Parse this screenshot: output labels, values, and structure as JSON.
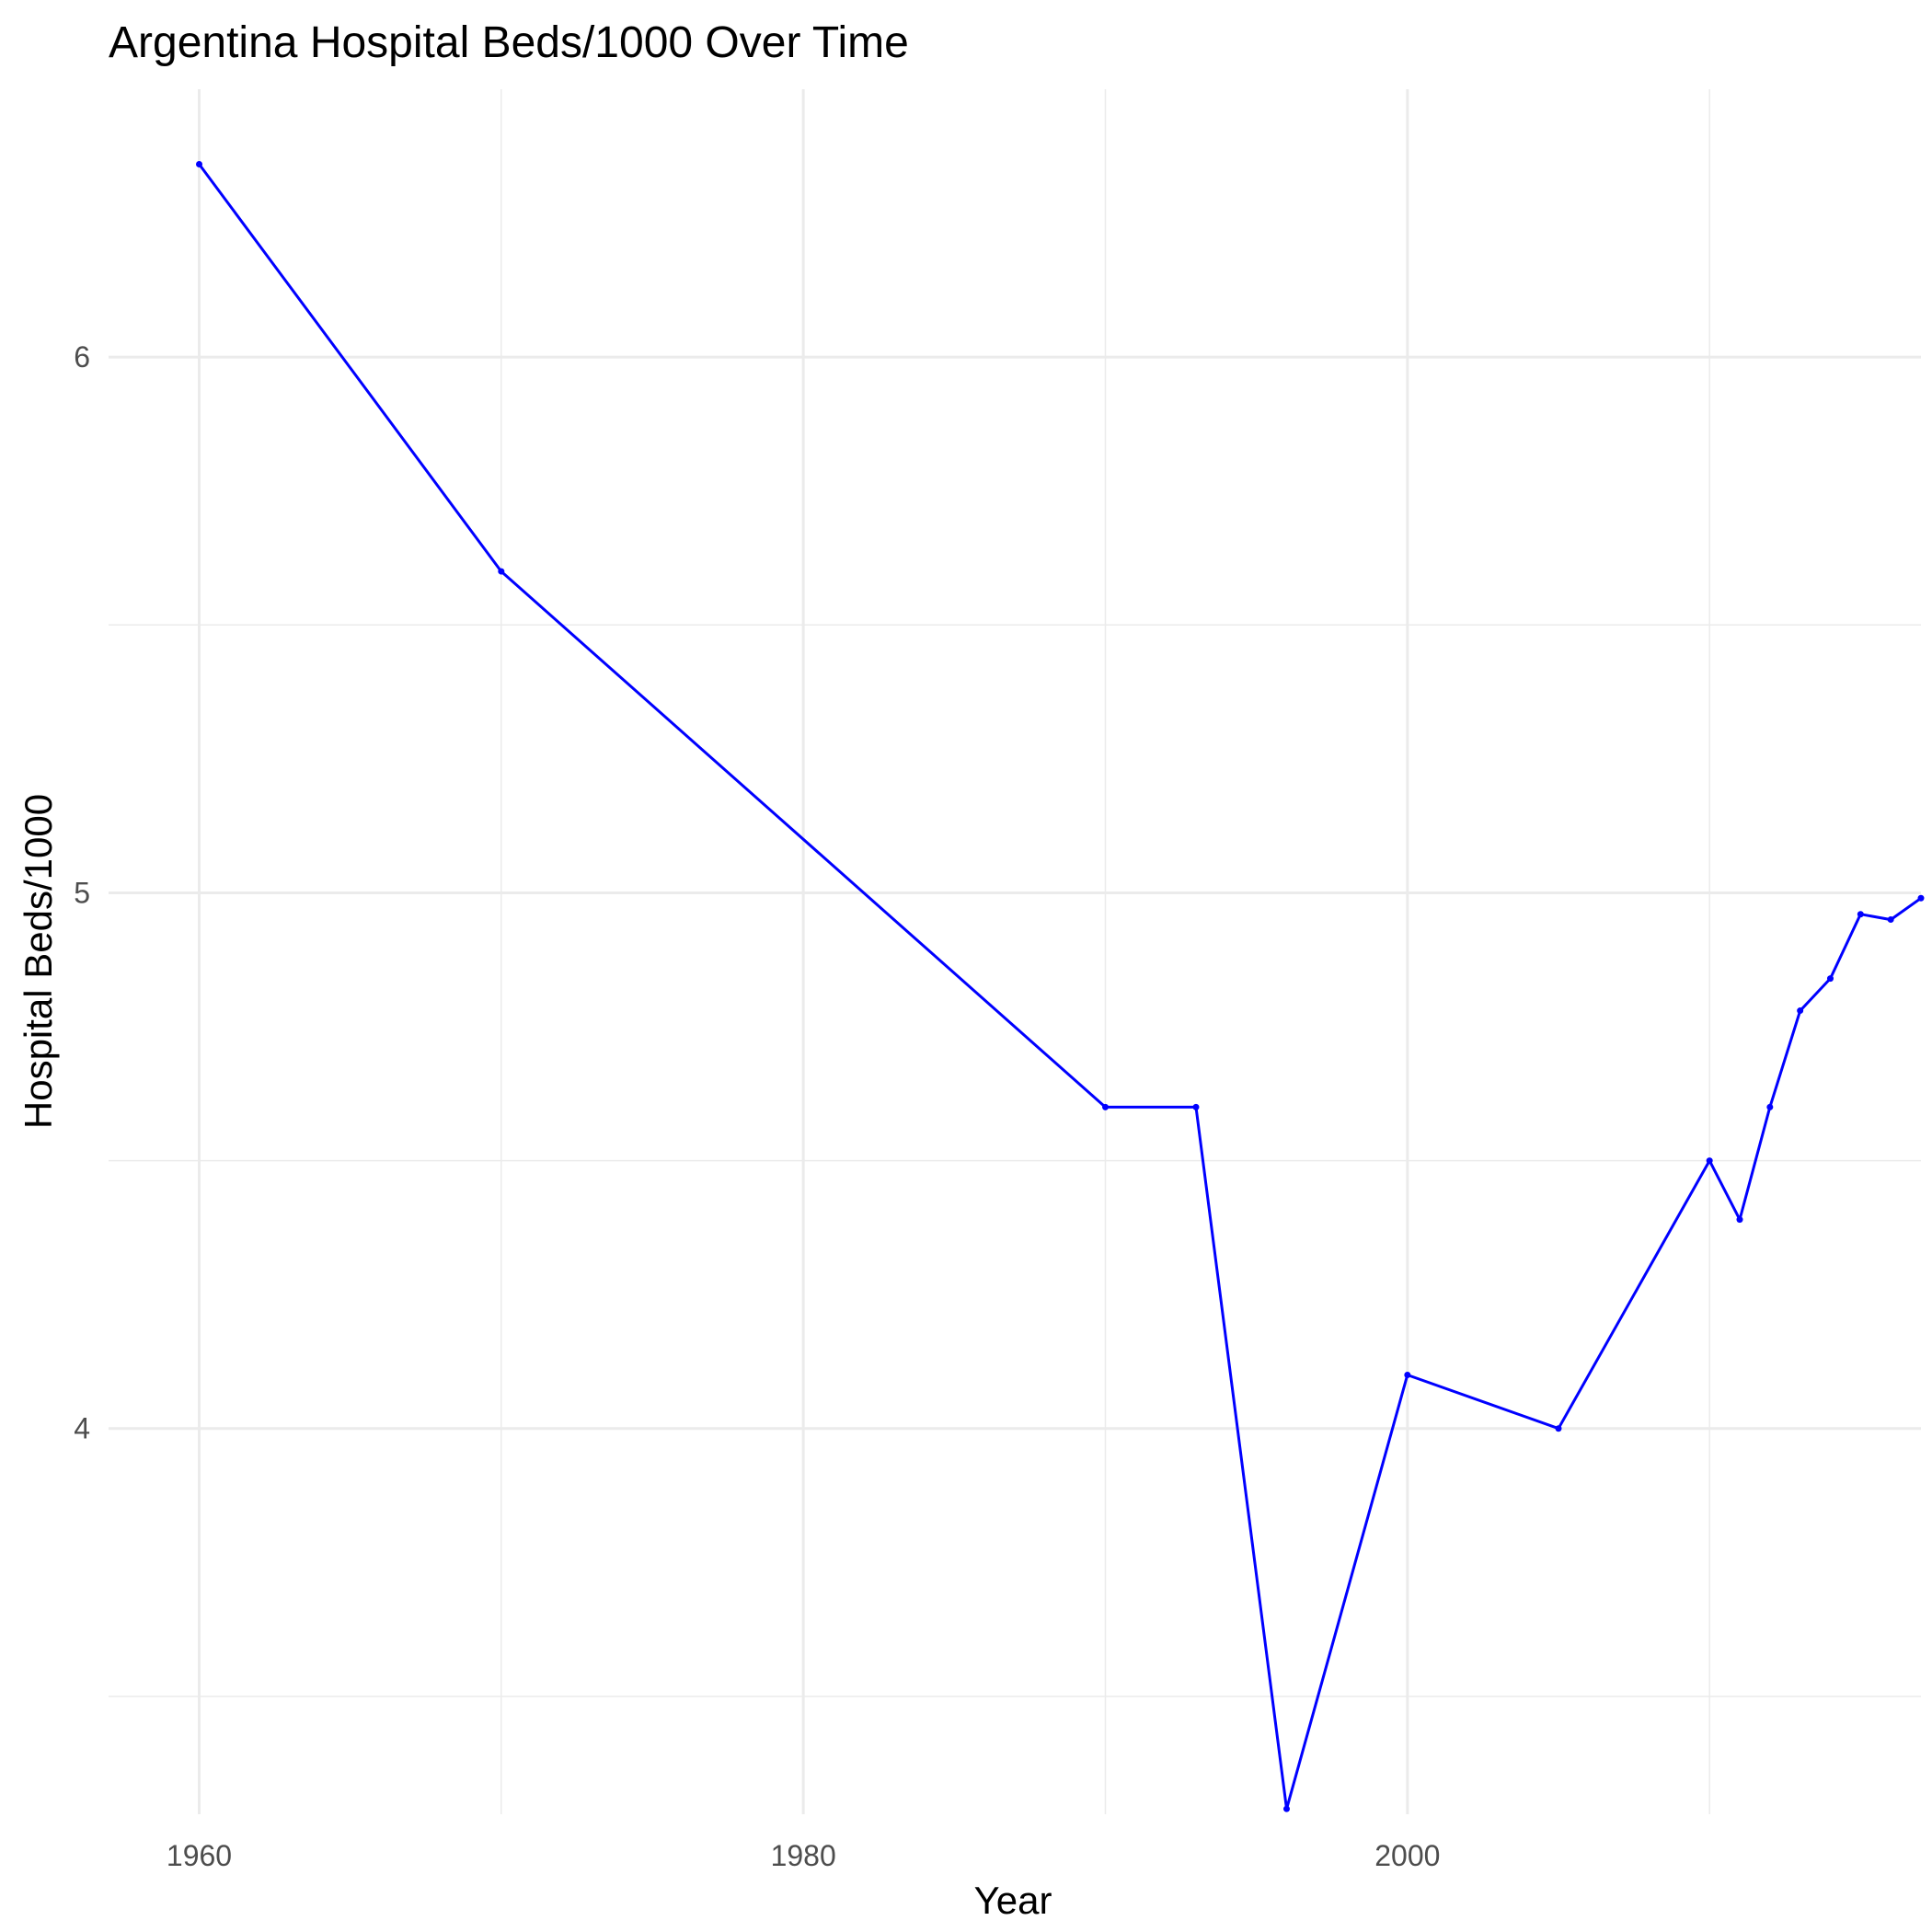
{
  "chart_data": {
    "type": "line",
    "title": "Argentina Hospital Beds/1000 Over Time",
    "xlabel": "Year",
    "ylabel": "Hospital Beds/1000",
    "xlim": [
      1957,
      2017
    ],
    "ylim": [
      3.28,
      6.5
    ],
    "x_major_ticks": [
      1960,
      1980,
      2000
    ],
    "x_minor_ticks": [
      1970,
      1990,
      2010
    ],
    "y_major_ticks": [
      4,
      5,
      6
    ],
    "y_minor_ticks": [
      3.5,
      4.5,
      5.5
    ],
    "x_tick_labels": [
      "1960",
      "1980",
      "2000"
    ],
    "y_tick_labels": [
      "4",
      "5",
      "6"
    ],
    "grid": true,
    "legend": "none",
    "colors": {
      "line": "#0000ff",
      "grid": "#ebebeb",
      "tick_text": "#4d4d4d",
      "text": "#000000"
    },
    "series": [
      {
        "x": [
          1960,
          1970,
          1990,
          1993,
          1996,
          2000,
          2005,
          2010,
          2011,
          2012,
          2013,
          2014,
          2015,
          2016,
          2017
        ],
        "y": [
          6.36,
          5.6,
          4.6,
          4.6,
          3.29,
          4.1,
          4.0,
          4.5,
          4.39,
          4.6,
          4.78,
          4.84,
          4.96,
          4.95,
          4.99
        ]
      }
    ]
  }
}
